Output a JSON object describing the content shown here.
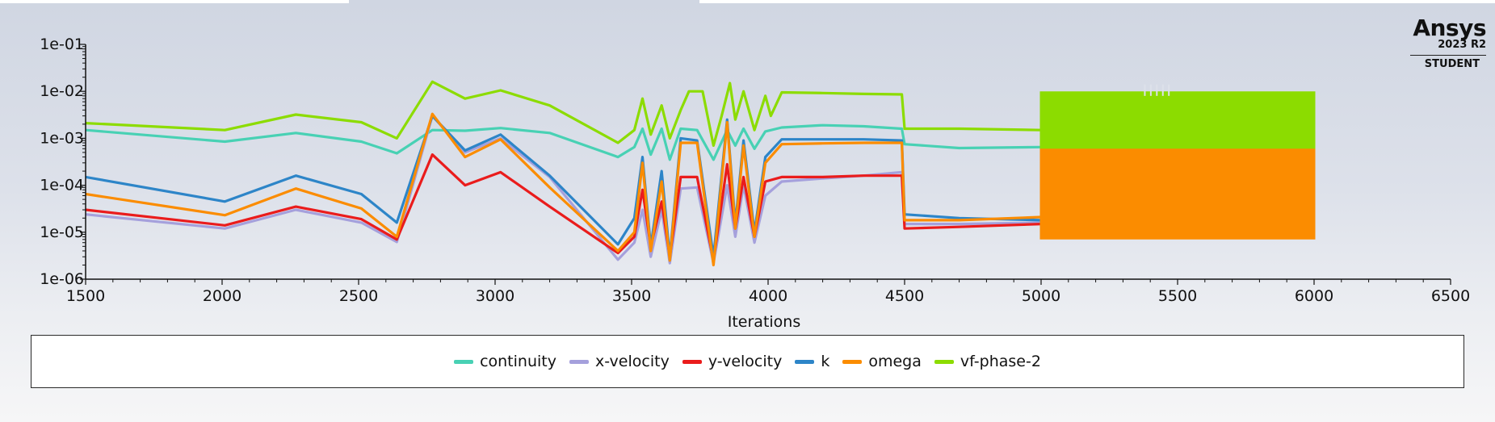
{
  "branding": {
    "name": "Ansys",
    "version": "2023 R2",
    "edition": "STUDENT"
  },
  "chart_data": {
    "type": "line",
    "title": "",
    "xlabel": "Iterations",
    "ylabel": "",
    "xlim": [
      1500,
      6500
    ],
    "ylim": [
      1e-06,
      0.1
    ],
    "yscale": "log",
    "x_ticks": [
      1500,
      2000,
      2500,
      3000,
      3500,
      4000,
      4500,
      5000,
      5500,
      6000,
      6500
    ],
    "x_tick_labels": [
      "1500",
      "2000",
      "2500",
      "3000",
      "3500",
      "4000",
      "4500",
      "5000",
      "5500",
      "6000",
      "6500"
    ],
    "y_ticks": [
      1e-06,
      1e-05,
      0.0001,
      0.001,
      0.01,
      0.1
    ],
    "y_tick_labels": [
      "1e-06",
      "1e-05",
      "1e-04",
      "1e-03",
      "1e-02",
      "1e-01"
    ],
    "grid": false,
    "legend_position": "bottom",
    "oscillation_band": {
      "x_start": 5000,
      "x_end": 6000,
      "note_x": 5380
    },
    "series": [
      {
        "name": "continuity",
        "color": "#48d1b4",
        "points": [
          [
            1500,
            0.0015
          ],
          [
            2010,
            0.00085
          ],
          [
            2270,
            0.0013
          ],
          [
            2510,
            0.00085
          ],
          [
            2640,
            0.00048
          ],
          [
            2770,
            0.0015
          ],
          [
            2890,
            0.00145
          ],
          [
            3020,
            0.00165
          ],
          [
            3200,
            0.0013
          ],
          [
            3450,
            0.0004
          ],
          [
            3510,
            0.00065
          ],
          [
            3540,
            0.0016
          ],
          [
            3570,
            0.00045
          ],
          [
            3610,
            0.0016
          ],
          [
            3640,
            0.00035
          ],
          [
            3680,
            0.0016
          ],
          [
            3740,
            0.0015
          ],
          [
            3800,
            0.00035
          ],
          [
            3850,
            0.0015
          ],
          [
            3880,
            0.0007
          ],
          [
            3910,
            0.0016
          ],
          [
            3950,
            0.0006
          ],
          [
            3990,
            0.0014
          ],
          [
            4050,
            0.0017
          ],
          [
            4200,
            0.0019
          ],
          [
            4350,
            0.0018
          ],
          [
            4490,
            0.0016
          ],
          [
            4500,
            0.00075
          ],
          [
            4700,
            0.00062
          ],
          [
            5000,
            0.00065
          ]
        ],
        "band": {
          "from": 5000,
          "to": 6000,
          "high": 0.0015,
          "low": 0.0011
        }
      },
      {
        "name": "x-velocity",
        "color": "#a5a0dc",
        "points": [
          [
            1500,
            2.4e-05
          ],
          [
            2010,
            1.2e-05
          ],
          [
            2270,
            3e-05
          ],
          [
            2510,
            1.6e-05
          ],
          [
            2640,
            6.2e-06
          ],
          [
            2770,
            0.003
          ],
          [
            2890,
            0.0005
          ],
          [
            3020,
            0.001
          ],
          [
            3200,
            0.00015
          ],
          [
            3450,
            2.6e-06
          ],
          [
            3510,
            6e-06
          ],
          [
            3540,
            3e-05
          ],
          [
            3570,
            3e-06
          ],
          [
            3610,
            3e-05
          ],
          [
            3640,
            2.2e-06
          ],
          [
            3680,
            8.5e-05
          ],
          [
            3740,
            9e-05
          ],
          [
            3800,
            2.2e-06
          ],
          [
            3850,
            0.0001
          ],
          [
            3880,
            8e-06
          ],
          [
            3910,
            0.0001
          ],
          [
            3950,
            6e-06
          ],
          [
            3990,
            6e-05
          ],
          [
            4050,
            0.00012
          ],
          [
            4200,
            0.00014
          ],
          [
            4350,
            0.00016
          ],
          [
            4490,
            0.00019
          ],
          [
            4500,
            1.5e-05
          ],
          [
            4700,
            1.5e-05
          ],
          [
            5000,
            1.6e-05
          ]
        ],
        "band": {
          "from": 5000,
          "to": 6000,
          "high": 2e-05,
          "low": 1.8e-05
        }
      },
      {
        "name": "y-velocity",
        "color": "#ea1c1c",
        "points": [
          [
            1500,
            3e-05
          ],
          [
            2010,
            1.4e-05
          ],
          [
            2270,
            3.5e-05
          ],
          [
            2510,
            1.9e-05
          ],
          [
            2640,
            7e-06
          ],
          [
            2770,
            0.00045
          ],
          [
            2890,
            0.0001
          ],
          [
            3020,
            0.00019
          ],
          [
            3200,
            3.5e-05
          ],
          [
            3450,
            3.6e-06
          ],
          [
            3510,
            8e-06
          ],
          [
            3540,
            8e-05
          ],
          [
            3570,
            5e-06
          ],
          [
            3610,
            4.5e-05
          ],
          [
            3640,
            3e-06
          ],
          [
            3680,
            0.00015
          ],
          [
            3740,
            0.00015
          ],
          [
            3800,
            2.5e-06
          ],
          [
            3850,
            0.00028
          ],
          [
            3880,
            1.2e-05
          ],
          [
            3910,
            0.00015
          ],
          [
            3950,
            8e-06
          ],
          [
            3990,
            0.00012
          ],
          [
            4050,
            0.00015
          ],
          [
            4200,
            0.00015
          ],
          [
            4350,
            0.00016
          ],
          [
            4490,
            0.00016
          ],
          [
            4500,
            1.2e-05
          ],
          [
            4700,
            1.3e-05
          ],
          [
            5000,
            1.5e-05
          ]
        ],
        "band": {
          "from": 5000,
          "to": 6000,
          "high": 1.5e-05,
          "low": 1.5e-05
        }
      },
      {
        "name": "k",
        "color": "#2d85c8",
        "points": [
          [
            1500,
            0.00015
          ],
          [
            2010,
            4.5e-05
          ],
          [
            2270,
            0.00016
          ],
          [
            2510,
            6.5e-05
          ],
          [
            2640,
            1.6e-05
          ],
          [
            2770,
            0.003
          ],
          [
            2890,
            0.00055
          ],
          [
            3020,
            0.0012
          ],
          [
            3200,
            0.00016
          ],
          [
            3450,
            5.5e-06
          ],
          [
            3510,
            2e-05
          ],
          [
            3540,
            0.0004
          ],
          [
            3570,
            5e-06
          ],
          [
            3610,
            0.0002
          ],
          [
            3640,
            3e-06
          ],
          [
            3680,
            0.001
          ],
          [
            3740,
            0.0009
          ],
          [
            3800,
            3e-06
          ],
          [
            3850,
            0.0025
          ],
          [
            3880,
            1.5e-05
          ],
          [
            3910,
            0.0009
          ],
          [
            3950,
            1e-05
          ],
          [
            3990,
            0.0004
          ],
          [
            4050,
            0.00095
          ],
          [
            4200,
            0.00095
          ],
          [
            4350,
            0.00095
          ],
          [
            4490,
            0.0009
          ],
          [
            4500,
            2.4e-05
          ],
          [
            4700,
            2e-05
          ],
          [
            5000,
            1.8e-05
          ]
        ],
        "band": {
          "from": 5000,
          "to": 6000,
          "high": 1.8e-05,
          "low": 8.5e-06
        }
      },
      {
        "name": "omega",
        "color": "#fb8c00",
        "points": [
          [
            1500,
            6.5e-05
          ],
          [
            2010,
            2.3e-05
          ],
          [
            2270,
            8.5e-05
          ],
          [
            2510,
            3.2e-05
          ],
          [
            2640,
            8e-06
          ],
          [
            2770,
            0.0033
          ],
          [
            2890,
            0.0004
          ],
          [
            3020,
            0.00095
          ],
          [
            3200,
            9e-05
          ],
          [
            3450,
            4e-06
          ],
          [
            3510,
            1e-05
          ],
          [
            3540,
            0.0003
          ],
          [
            3570,
            4e-06
          ],
          [
            3610,
            0.00012
          ],
          [
            3640,
            2.5e-06
          ],
          [
            3680,
            0.0008
          ],
          [
            3740,
            0.0008
          ],
          [
            3800,
            2e-06
          ],
          [
            3850,
            0.0022
          ],
          [
            3880,
            1.2e-05
          ],
          [
            3910,
            0.0007
          ],
          [
            3950,
            8e-06
          ],
          [
            3990,
            0.0003
          ],
          [
            4050,
            0.00075
          ],
          [
            4200,
            0.00078
          ],
          [
            4350,
            0.0008
          ],
          [
            4490,
            0.0008
          ],
          [
            4500,
            1.8e-05
          ],
          [
            4700,
            1.8e-05
          ],
          [
            5000,
            2.1e-05
          ]
        ],
        "band": {
          "from": 5000,
          "to": 6000,
          "high": 0.0012,
          "low": 7e-06
        }
      },
      {
        "name": "vf-phase-2",
        "color": "#8cdc00",
        "points": [
          [
            1500,
            0.0021
          ],
          [
            2010,
            0.0015
          ],
          [
            2270,
            0.0032
          ],
          [
            2510,
            0.0022
          ],
          [
            2640,
            0.001
          ],
          [
            2770,
            0.016
          ],
          [
            2890,
            0.007
          ],
          [
            3020,
            0.0105
          ],
          [
            3200,
            0.005
          ],
          [
            3450,
            0.0008
          ],
          [
            3510,
            0.0015
          ],
          [
            3540,
            0.007
          ],
          [
            3570,
            0.0012
          ],
          [
            3610,
            0.005
          ],
          [
            3640,
            0.001
          ],
          [
            3680,
            0.004
          ],
          [
            3710,
            0.01
          ],
          [
            3760,
            0.01
          ],
          [
            3800,
            0.0007
          ],
          [
            3830,
            0.003
          ],
          [
            3860,
            0.015
          ],
          [
            3880,
            0.0025
          ],
          [
            3910,
            0.01
          ],
          [
            3950,
            0.0015
          ],
          [
            3990,
            0.008
          ],
          [
            4010,
            0.003
          ],
          [
            4050,
            0.0095
          ],
          [
            4200,
            0.0092
          ],
          [
            4350,
            0.0088
          ],
          [
            4490,
            0.0086
          ],
          [
            4500,
            0.0016
          ],
          [
            4700,
            0.0016
          ],
          [
            5000,
            0.0015
          ]
        ],
        "band": {
          "from": 5000,
          "to": 6000,
          "high": 0.01,
          "low": 0.0006
        }
      }
    ]
  }
}
